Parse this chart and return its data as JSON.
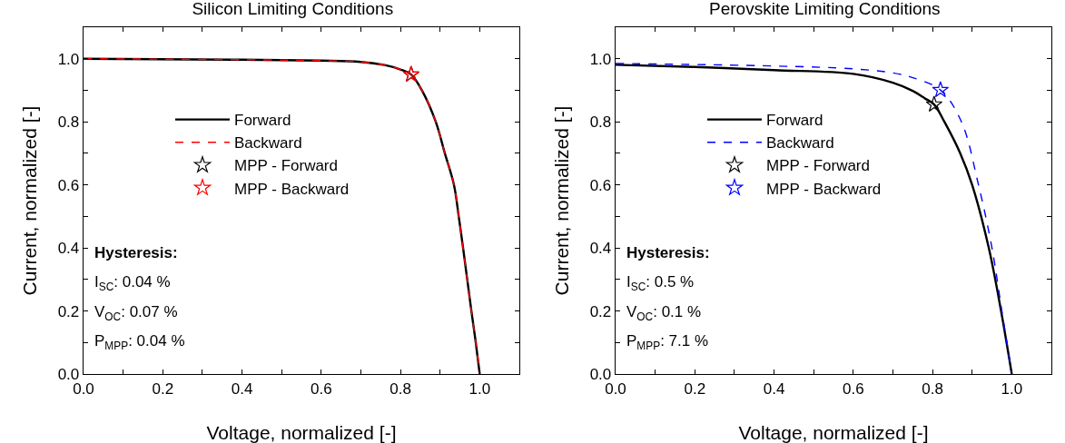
{
  "chart_data": [
    {
      "type": "line",
      "title": "Silicon Limiting Conditions",
      "xlabel": "Voltage, normalized [-]",
      "ylabel": "Current, normalized [-]",
      "xlim": [
        0,
        1.1
      ],
      "ylim": [
        0,
        1.1
      ],
      "xticks": [
        {
          "value": 0,
          "label": "0.0"
        },
        {
          "value": 0.1,
          "label": null
        },
        {
          "value": 0.2,
          "label": "0.2"
        },
        {
          "value": 0.3,
          "label": null
        },
        {
          "value": 0.4,
          "label": "0.4"
        },
        {
          "value": 0.5,
          "label": null
        },
        {
          "value": 0.6,
          "label": "0.6"
        },
        {
          "value": 0.7,
          "label": null
        },
        {
          "value": 0.8,
          "label": "0.8"
        },
        {
          "value": 0.9,
          "label": null
        },
        {
          "value": 1,
          "label": "1.0"
        }
      ],
      "yticks": [
        {
          "value": 0,
          "label": "0.0"
        },
        {
          "value": 0.1,
          "label": null
        },
        {
          "value": 0.2,
          "label": "0.2"
        },
        {
          "value": 0.3,
          "label": null
        },
        {
          "value": 0.4,
          "label": "0.4"
        },
        {
          "value": 0.5,
          "label": null
        },
        {
          "value": 0.6,
          "label": "0.6"
        },
        {
          "value": 0.7,
          "label": null
        },
        {
          "value": 0.8,
          "label": "0.8"
        },
        {
          "value": 0.9,
          "label": null
        },
        {
          "value": 1,
          "label": "1.0"
        }
      ],
      "grid": false,
      "legend": "top left",
      "series": [
        {
          "name": "Forward",
          "type": "line",
          "line_style": "solid",
          "color": "#000000",
          "x": [
            0,
            0.4,
            0.6,
            0.7,
            0.76,
            0.8,
            0.827,
            0.854,
            0.889,
            0.912,
            0.935,
            0.947,
            0.958,
            0.979,
            0.99,
            1.0
          ],
          "values": [
            1.0,
            0.997,
            0.994,
            0.99,
            0.98,
            0.966,
            0.95,
            0.9,
            0.8,
            0.7,
            0.6,
            0.5,
            0.4,
            0.2,
            0.1,
            0
          ]
        },
        {
          "name": "Backward",
          "type": "line",
          "line_style": "dashed",
          "color": "#ff0000",
          "x": [
            0,
            0.4,
            0.6,
            0.7,
            0.76,
            0.8,
            0.827,
            0.854,
            0.889,
            0.912,
            0.935,
            0.947,
            0.958,
            0.979,
            0.99,
            1.0
          ],
          "values": [
            1.0,
            0.997,
            0.994,
            0.99,
            0.98,
            0.966,
            0.95,
            0.9,
            0.8,
            0.7,
            0.6,
            0.5,
            0.4,
            0.2,
            0.1,
            0
          ]
        },
        {
          "name": "MPP - Forward",
          "type": "scatter",
          "marker": "star",
          "color": "#000000",
          "x": [
            0.827
          ],
          "values": [
            0.95
          ]
        },
        {
          "name": "MPP - Backward",
          "type": "scatter",
          "marker": "star",
          "color": "#ff0000",
          "x": [
            0.827
          ],
          "values": [
            0.95
          ]
        }
      ],
      "annotations": [
        "Hysteresis:",
        "I$_{SC}$: 0.04 %",
        "V$_{OC}$: 0.07 %",
        "P$_{MPP}$: 0.04 %"
      ]
    },
    {
      "type": "line",
      "title": "Perovskite Limiting Conditions",
      "xlabel": "Voltage, normalized [-]",
      "ylabel": "Current, normalized [-]",
      "xlim": [
        0,
        1.1
      ],
      "ylim": [
        0,
        1.1
      ],
      "xticks": [
        {
          "value": 0,
          "label": "0.0"
        },
        {
          "value": 0.1,
          "label": null
        },
        {
          "value": 0.2,
          "label": "0.2"
        },
        {
          "value": 0.3,
          "label": null
        },
        {
          "value": 0.4,
          "label": "0.4"
        },
        {
          "value": 0.5,
          "label": null
        },
        {
          "value": 0.6,
          "label": "0.6"
        },
        {
          "value": 0.7,
          "label": null
        },
        {
          "value": 0.8,
          "label": "0.8"
        },
        {
          "value": 0.9,
          "label": null
        },
        {
          "value": 1,
          "label": "1.0"
        }
      ],
      "yticks": [
        {
          "value": 0,
          "label": "0.0"
        },
        {
          "value": 0.1,
          "label": null
        },
        {
          "value": 0.2,
          "label": "0.2"
        },
        {
          "value": 0.3,
          "label": null
        },
        {
          "value": 0.4,
          "label": "0.4"
        },
        {
          "value": 0.5,
          "label": null
        },
        {
          "value": 0.6,
          "label": "0.6"
        },
        {
          "value": 0.7,
          "label": null
        },
        {
          "value": 0.8,
          "label": "0.8"
        },
        {
          "value": 0.9,
          "label": null
        },
        {
          "value": 1,
          "label": "1.0"
        }
      ],
      "grid": false,
      "legend": "top left",
      "series": [
        {
          "name": "Forward",
          "type": "line",
          "line_style": "solid",
          "color": "#000000",
          "x": [
            0,
            0.2,
            0.4,
            0.6,
            0.7,
            0.75,
            0.78,
            0.804,
            0.83,
            0.87,
            0.9,
            0.942,
            0.973,
            1.0
          ],
          "values": [
            0.981,
            0.974,
            0.964,
            0.952,
            0.924,
            0.898,
            0.875,
            0.855,
            0.8,
            0.7,
            0.6,
            0.4,
            0.2,
            0
          ]
        },
        {
          "name": "Backward",
          "type": "line",
          "line_style": "dashed",
          "color": "#0000ff",
          "x": [
            0,
            0.4,
            0.6,
            0.7,
            0.75,
            0.82,
            0.873,
            0.916,
            0.95,
            0.975,
            1.0
          ],
          "values": [
            0.985,
            0.977,
            0.968,
            0.955,
            0.94,
            0.901,
            0.8,
            0.6,
            0.4,
            0.2,
            0
          ]
        },
        {
          "name": "MPP - Forward",
          "type": "scatter",
          "marker": "star",
          "color": "#000000",
          "x": [
            0.804
          ],
          "values": [
            0.855
          ]
        },
        {
          "name": "MPP - Backward",
          "type": "scatter",
          "marker": "star",
          "color": "#0000ff",
          "x": [
            0.82
          ],
          "values": [
            0.901
          ]
        }
      ],
      "annotations": [
        "Hysteresis:",
        "I$_{SC}$: 0.5 %",
        "V$_{OC}$: 0.1 %",
        "P$_{MPP}$: 7.1 %"
      ]
    }
  ]
}
